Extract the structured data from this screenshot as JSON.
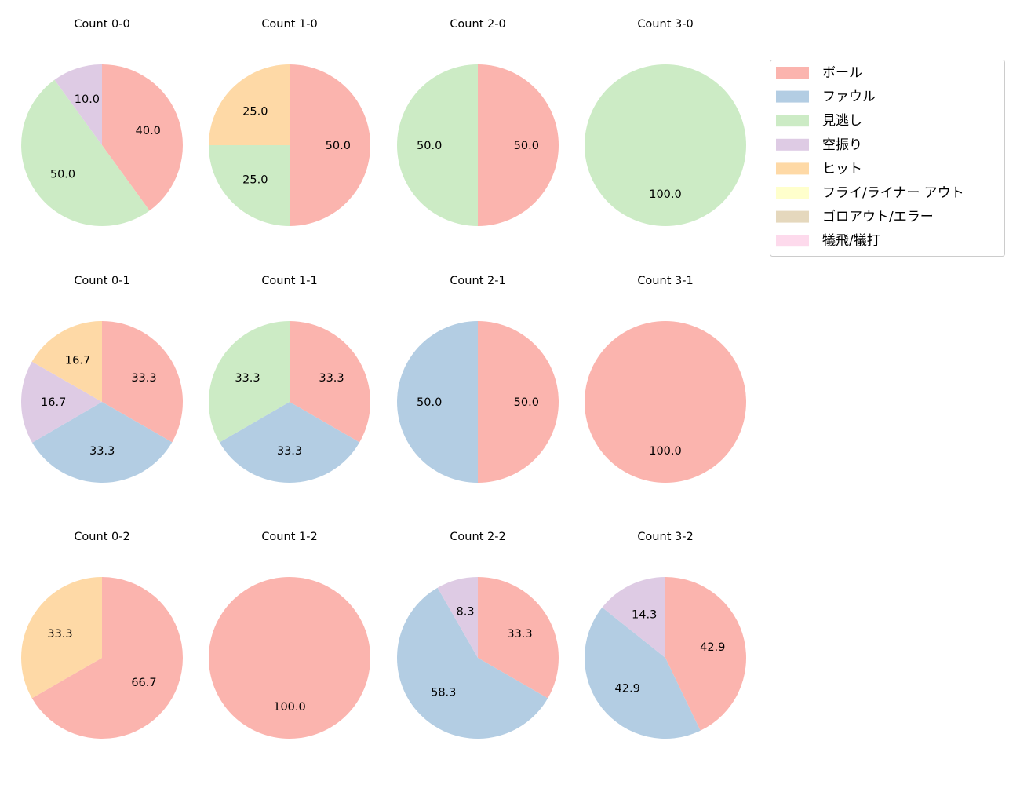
{
  "chart_data": {
    "type": "pie",
    "direction": "clockwise",
    "start": "top",
    "categories": [
      "ボール",
      "ファウル",
      "見逃し",
      "空振り",
      "ヒット",
      "フライ/ライナー アウト",
      "ゴロアウト/エラー",
      "犠飛/犠打"
    ],
    "colors": [
      "#fbb4ae",
      "#b3cde3",
      "#ccebc5",
      "#decbe4",
      "#fed9a6",
      "#ffffcc",
      "#e5d8bd",
      "#fddaec"
    ],
    "legend_position": "right",
    "charts": [
      {
        "title": "Count 0-0",
        "slices": [
          {
            "category": "ボール",
            "value": 40.0
          },
          {
            "category": "見逃し",
            "value": 50.0
          },
          {
            "category": "空振り",
            "value": 10.0
          }
        ]
      },
      {
        "title": "Count 1-0",
        "slices": [
          {
            "category": "ボール",
            "value": 50.0
          },
          {
            "category": "見逃し",
            "value": 25.0
          },
          {
            "category": "ヒット",
            "value": 25.0
          }
        ]
      },
      {
        "title": "Count 2-0",
        "slices": [
          {
            "category": "ボール",
            "value": 50.0
          },
          {
            "category": "見逃し",
            "value": 50.0
          }
        ]
      },
      {
        "title": "Count 3-0",
        "slices": [
          {
            "category": "見逃し",
            "value": 100.0
          }
        ]
      },
      {
        "title": "Count 0-1",
        "slices": [
          {
            "category": "ボール",
            "value": 33.3
          },
          {
            "category": "ファウル",
            "value": 33.3
          },
          {
            "category": "空振り",
            "value": 16.7
          },
          {
            "category": "ヒット",
            "value": 16.7
          }
        ]
      },
      {
        "title": "Count 1-1",
        "slices": [
          {
            "category": "ボール",
            "value": 33.3
          },
          {
            "category": "ファウル",
            "value": 33.3
          },
          {
            "category": "見逃し",
            "value": 33.3
          }
        ]
      },
      {
        "title": "Count 2-1",
        "slices": [
          {
            "category": "ボール",
            "value": 50.0
          },
          {
            "category": "ファウル",
            "value": 50.0
          }
        ]
      },
      {
        "title": "Count 3-1",
        "slices": [
          {
            "category": "ボール",
            "value": 100.0
          }
        ]
      },
      {
        "title": "Count 0-2",
        "slices": [
          {
            "category": "ボール",
            "value": 66.7
          },
          {
            "category": "ヒット",
            "value": 33.3
          }
        ]
      },
      {
        "title": "Count 1-2",
        "slices": [
          {
            "category": "ボール",
            "value": 100.0
          }
        ]
      },
      {
        "title": "Count 2-2",
        "slices": [
          {
            "category": "ボール",
            "value": 33.3
          },
          {
            "category": "ファウル",
            "value": 58.3
          },
          {
            "category": "空振り",
            "value": 8.3
          }
        ]
      },
      {
        "title": "Count 3-2",
        "slices": [
          {
            "category": "ボール",
            "value": 42.9
          },
          {
            "category": "ファウル",
            "value": 42.9
          },
          {
            "category": "空振り",
            "value": 14.3
          }
        ]
      }
    ]
  }
}
